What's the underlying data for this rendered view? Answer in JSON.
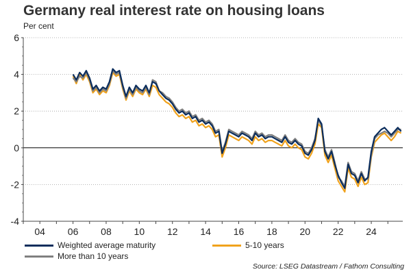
{
  "title": "Germany real interest rate on housing loans",
  "source": "Source: LSEG Datastream / Fathom Consulting",
  "chart_data": {
    "type": "line",
    "title": "Germany real interest rate on housing loans",
    "ylabel": "Per cent",
    "xlabel": "",
    "ylim": [
      -4,
      6
    ],
    "xlim": [
      2003.0,
      2025.9
    ],
    "y_ticks": [
      6,
      4,
      2,
      0,
      -2,
      -4
    ],
    "x_ticks": [
      {
        "value": 2004,
        "label": "04"
      },
      {
        "value": 2006,
        "label": "06"
      },
      {
        "value": 2008,
        "label": "08"
      },
      {
        "value": 2010,
        "label": "10"
      },
      {
        "value": 2012,
        "label": "12"
      },
      {
        "value": 2014,
        "label": "14"
      },
      {
        "value": 2016,
        "label": "16"
      },
      {
        "value": 2018,
        "label": "18"
      },
      {
        "value": 2020,
        "label": "20"
      },
      {
        "value": 2022,
        "label": "22"
      },
      {
        "value": 2024,
        "label": "24"
      }
    ],
    "grid": "horizontal dotted",
    "legend_position": "bottom",
    "series": [
      {
        "name": "Weighted average maturity",
        "color": "#0b2d5c",
        "x": [
          2006.0,
          2006.2,
          2006.4,
          2006.6,
          2006.8,
          2007.0,
          2007.2,
          2007.4,
          2007.6,
          2007.8,
          2008.0,
          2008.2,
          2008.4,
          2008.6,
          2008.8,
          2009.0,
          2009.2,
          2009.4,
          2009.6,
          2009.8,
          2010.0,
          2010.2,
          2010.4,
          2010.6,
          2010.8,
          2011.0,
          2011.2,
          2011.4,
          2011.6,
          2011.8,
          2012.0,
          2012.2,
          2012.4,
          2012.6,
          2012.8,
          2013.0,
          2013.2,
          2013.4,
          2013.6,
          2013.8,
          2014.0,
          2014.2,
          2014.4,
          2014.6,
          2014.8,
          2015.0,
          2015.2,
          2015.4,
          2015.6,
          2015.8,
          2016.0,
          2016.2,
          2016.4,
          2016.6,
          2016.8,
          2017.0,
          2017.2,
          2017.4,
          2017.6,
          2017.8,
          2018.0,
          2018.2,
          2018.4,
          2018.6,
          2018.8,
          2019.0,
          2019.2,
          2019.4,
          2019.6,
          2019.8,
          2020.0,
          2020.2,
          2020.4,
          2020.6,
          2020.8,
          2021.0,
          2021.2,
          2021.4,
          2021.6,
          2021.8,
          2022.0,
          2022.2,
          2022.4,
          2022.6,
          2022.8,
          2023.0,
          2023.2,
          2023.4,
          2023.6,
          2023.8,
          2024.0,
          2024.2,
          2024.4,
          2024.6,
          2024.8,
          2025.0,
          2025.2,
          2025.4,
          2025.6,
          2025.8
        ],
        "y": [
          4.0,
          3.7,
          4.1,
          3.9,
          4.2,
          3.8,
          3.2,
          3.4,
          3.1,
          3.3,
          3.2,
          3.6,
          4.3,
          4.1,
          4.2,
          3.4,
          2.8,
          3.3,
          3.0,
          3.4,
          3.2,
          3.1,
          3.4,
          3.0,
          3.6,
          3.5,
          3.1,
          2.9,
          2.7,
          2.6,
          2.4,
          2.1,
          1.9,
          2.0,
          1.8,
          1.9,
          1.6,
          1.7,
          1.4,
          1.5,
          1.3,
          1.4,
          1.2,
          0.8,
          0.9,
          -0.3,
          0.2,
          0.9,
          0.8,
          0.7,
          0.6,
          0.8,
          0.7,
          0.6,
          0.4,
          0.8,
          0.6,
          0.7,
          0.5,
          0.6,
          0.6,
          0.5,
          0.4,
          0.3,
          0.6,
          0.3,
          0.2,
          0.4,
          0.2,
          0.1,
          -0.3,
          -0.4,
          -0.1,
          0.4,
          1.6,
          1.3,
          -0.2,
          -0.6,
          -0.2,
          -0.9,
          -1.5,
          -1.9,
          -2.2,
          -0.9,
          -1.4,
          -1.5,
          -1.9,
          -1.4,
          -1.8,
          -1.6,
          -0.2,
          0.6,
          0.8,
          1.0,
          1.1,
          0.9,
          0.7,
          0.9,
          1.1,
          0.9
        ],
        "note_points": "approximate, read from gridlines"
      },
      {
        "name": "5-10 years",
        "color": "#f0a21c",
        "x": [
          2006.0,
          2006.2,
          2006.4,
          2006.6,
          2006.8,
          2007.0,
          2007.2,
          2007.4,
          2007.6,
          2007.8,
          2008.0,
          2008.2,
          2008.4,
          2008.6,
          2008.8,
          2009.0,
          2009.2,
          2009.4,
          2009.6,
          2009.8,
          2010.0,
          2010.2,
          2010.4,
          2010.6,
          2010.8,
          2011.0,
          2011.2,
          2011.4,
          2011.6,
          2011.8,
          2012.0,
          2012.2,
          2012.4,
          2012.6,
          2012.8,
          2013.0,
          2013.2,
          2013.4,
          2013.6,
          2013.8,
          2014.0,
          2014.2,
          2014.4,
          2014.6,
          2014.8,
          2015.0,
          2015.2,
          2015.4,
          2015.6,
          2015.8,
          2016.0,
          2016.2,
          2016.4,
          2016.6,
          2016.8,
          2017.0,
          2017.2,
          2017.4,
          2017.6,
          2017.8,
          2018.0,
          2018.2,
          2018.4,
          2018.6,
          2018.8,
          2019.0,
          2019.2,
          2019.4,
          2019.6,
          2019.8,
          2020.0,
          2020.2,
          2020.4,
          2020.6,
          2020.8,
          2021.0,
          2021.2,
          2021.4,
          2021.6,
          2021.8,
          2022.0,
          2022.2,
          2022.4,
          2022.6,
          2022.8,
          2023.0,
          2023.2,
          2023.4,
          2023.6,
          2023.8,
          2024.0,
          2024.2,
          2024.4,
          2024.6,
          2024.8,
          2025.0,
          2025.2,
          2025.4,
          2025.6,
          2025.8
        ],
        "y": [
          3.9,
          3.5,
          4.0,
          3.7,
          4.0,
          3.6,
          3.0,
          3.2,
          2.9,
          3.1,
          3.0,
          3.4,
          4.1,
          3.9,
          4.0,
          3.2,
          2.6,
          3.1,
          2.8,
          3.2,
          3.0,
          2.9,
          3.2,
          2.8,
          3.4,
          3.3,
          2.9,
          2.7,
          2.5,
          2.4,
          2.2,
          1.9,
          1.7,
          1.8,
          1.6,
          1.7,
          1.4,
          1.5,
          1.2,
          1.3,
          1.1,
          1.2,
          1.0,
          0.6,
          0.7,
          -0.5,
          0.0,
          0.7,
          0.6,
          0.5,
          0.4,
          0.6,
          0.5,
          0.4,
          0.2,
          0.6,
          0.4,
          0.5,
          0.3,
          0.4,
          0.4,
          0.3,
          0.2,
          0.1,
          0.4,
          0.1,
          0.0,
          0.2,
          0.0,
          -0.1,
          -0.5,
          -0.6,
          -0.3,
          0.2,
          1.3,
          1.1,
          -0.4,
          -0.8,
          -0.4,
          -1.1,
          -1.8,
          -2.1,
          -2.4,
          -1.1,
          -1.6,
          -1.7,
          -2.1,
          -1.6,
          -2.0,
          -1.9,
          -0.5,
          0.3,
          0.5,
          0.7,
          0.8,
          0.6,
          0.4,
          0.6,
          0.9,
          0.8
        ]
      },
      {
        "name": "More than 10 years",
        "color": "#808080",
        "x": [
          2006.0,
          2006.2,
          2006.4,
          2006.6,
          2006.8,
          2007.0,
          2007.2,
          2007.4,
          2007.6,
          2007.8,
          2008.0,
          2008.2,
          2008.4,
          2008.6,
          2008.8,
          2009.0,
          2009.2,
          2009.4,
          2009.6,
          2009.8,
          2010.0,
          2010.2,
          2010.4,
          2010.6,
          2010.8,
          2011.0,
          2011.2,
          2011.4,
          2011.6,
          2011.8,
          2012.0,
          2012.2,
          2012.4,
          2012.6,
          2012.8,
          2013.0,
          2013.2,
          2013.4,
          2013.6,
          2013.8,
          2014.0,
          2014.2,
          2014.4,
          2014.6,
          2014.8,
          2015.0,
          2015.2,
          2015.4,
          2015.6,
          2015.8,
          2016.0,
          2016.2,
          2016.4,
          2016.6,
          2016.8,
          2017.0,
          2017.2,
          2017.4,
          2017.6,
          2017.8,
          2018.0,
          2018.2,
          2018.4,
          2018.6,
          2018.8,
          2019.0,
          2019.2,
          2019.4,
          2019.6,
          2019.8,
          2020.0,
          2020.2,
          2020.4,
          2020.6,
          2020.8,
          2021.0,
          2021.2,
          2021.4,
          2021.6,
          2021.8,
          2022.0,
          2022.2,
          2022.4,
          2022.6,
          2022.8,
          2023.0,
          2023.2,
          2023.4,
          2023.6,
          2023.8,
          2024.0,
          2024.2,
          2024.4,
          2024.6,
          2024.8,
          2025.0,
          2025.2,
          2025.4,
          2025.6,
          2025.8
        ],
        "y": [
          3.8,
          3.6,
          3.9,
          3.8,
          4.1,
          3.7,
          3.1,
          3.3,
          3.0,
          3.2,
          3.1,
          3.5,
          4.2,
          4.0,
          4.1,
          3.3,
          2.7,
          3.2,
          2.9,
          3.3,
          3.1,
          3.0,
          3.3,
          2.9,
          3.7,
          3.6,
          3.1,
          3.0,
          2.8,
          2.7,
          2.5,
          2.2,
          2.0,
          2.1,
          1.9,
          2.0,
          1.7,
          1.8,
          1.5,
          1.6,
          1.4,
          1.5,
          1.3,
          0.9,
          1.0,
          -0.2,
          0.3,
          1.0,
          0.9,
          0.8,
          0.7,
          0.9,
          0.8,
          0.7,
          0.5,
          0.9,
          0.7,
          0.8,
          0.6,
          0.7,
          0.7,
          0.6,
          0.5,
          0.4,
          0.7,
          0.4,
          0.3,
          0.5,
          0.3,
          0.2,
          -0.2,
          -0.3,
          0.0,
          0.5,
          1.5,
          1.2,
          -0.1,
          -0.5,
          -0.1,
          -0.8,
          -1.6,
          -1.8,
          -2.1,
          -0.8,
          -1.3,
          -1.4,
          -1.8,
          -1.3,
          -1.7,
          -1.7,
          -0.4,
          0.5,
          0.7,
          0.8,
          0.9,
          0.8,
          0.6,
          0.8,
          1.0,
          1.0
        ]
      }
    ]
  }
}
